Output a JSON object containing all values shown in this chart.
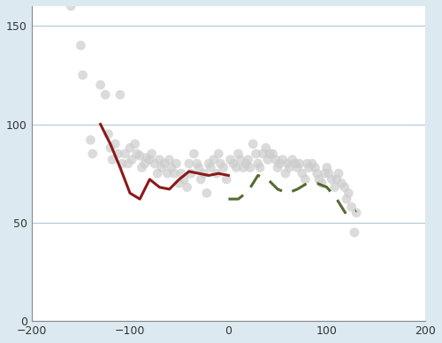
{
  "bg_color": "#dce9f0",
  "plot_bg_color": "#ffffff",
  "xlim": [
    -200,
    200
  ],
  "ylim": [
    0,
    160
  ],
  "xticks": [
    -200,
    -100,
    0,
    100,
    200
  ],
  "yticks": [
    0,
    50,
    100,
    150
  ],
  "grid_color": "#b0c8d8",
  "scatter_color": "#cccccc",
  "scatter_alpha": 0.7,
  "scatter_size": 60,
  "red_line_color": "#8b1a1a",
  "green_line_color": "#556b2f",
  "red_line_x": [
    -130,
    -120,
    -110,
    -100,
    -90,
    -80,
    -70,
    -60,
    -50,
    -40,
    -30,
    -20,
    -10,
    0
  ],
  "red_line_y": [
    100,
    90,
    78,
    65,
    62,
    72,
    68,
    67,
    72,
    76,
    75,
    74,
    75,
    74
  ],
  "green_line_x": [
    0,
    10,
    20,
    30,
    40,
    50,
    60,
    70,
    80,
    90,
    100,
    110,
    120,
    130
  ],
  "green_line_y": [
    62,
    62,
    66,
    74,
    72,
    67,
    65,
    67,
    70,
    70,
    68,
    62,
    54,
    56
  ],
  "scatter_x": [
    -160,
    -150,
    -148,
    -140,
    -138,
    -130,
    -125,
    -122,
    -120,
    -118,
    -115,
    -112,
    -110,
    -108,
    -105,
    -102,
    -100,
    -98,
    -95,
    -93,
    -90,
    -88,
    -85,
    -83,
    -80,
    -78,
    -75,
    -72,
    -70,
    -68,
    -65,
    -62,
    -60,
    -58,
    -55,
    -53,
    -50,
    -48,
    -45,
    -42,
    -40,
    -38,
    -35,
    -32,
    -30,
    -28,
    -25,
    -22,
    -20,
    -18,
    -15,
    -12,
    -10,
    -8,
    -5,
    -2,
    2,
    5,
    8,
    10,
    12,
    15,
    18,
    20,
    22,
    25,
    28,
    30,
    32,
    35,
    38,
    40,
    42,
    45,
    48,
    50,
    52,
    55,
    58,
    60,
    62,
    65,
    68,
    70,
    72,
    75,
    78,
    80,
    82,
    85,
    88,
    90,
    92,
    95,
    98,
    100,
    102,
    105,
    108,
    110,
    112,
    115,
    118,
    120,
    122,
    125,
    128,
    130
  ],
  "scatter_y": [
    160,
    140,
    125,
    92,
    85,
    120,
    115,
    95,
    88,
    82,
    90,
    85,
    115,
    80,
    85,
    80,
    88,
    82,
    90,
    85,
    84,
    78,
    80,
    83,
    82,
    85,
    80,
    75,
    82,
    78,
    80,
    75,
    82,
    78,
    75,
    80,
    70,
    75,
    72,
    68,
    80,
    75,
    85,
    80,
    78,
    72,
    75,
    65,
    80,
    78,
    82,
    75,
    85,
    80,
    78,
    72,
    82,
    80,
    78,
    85,
    82,
    78,
    80,
    82,
    78,
    90,
    85,
    80,
    78,
    85,
    88,
    82,
    85,
    85,
    82,
    78,
    80,
    82,
    75,
    80,
    78,
    82,
    80,
    78,
    80,
    75,
    72,
    80,
    78,
    80,
    78,
    75,
    72,
    70,
    75,
    78,
    75,
    72,
    68,
    72,
    75,
    70,
    68,
    62,
    65,
    58,
    45,
    55
  ]
}
